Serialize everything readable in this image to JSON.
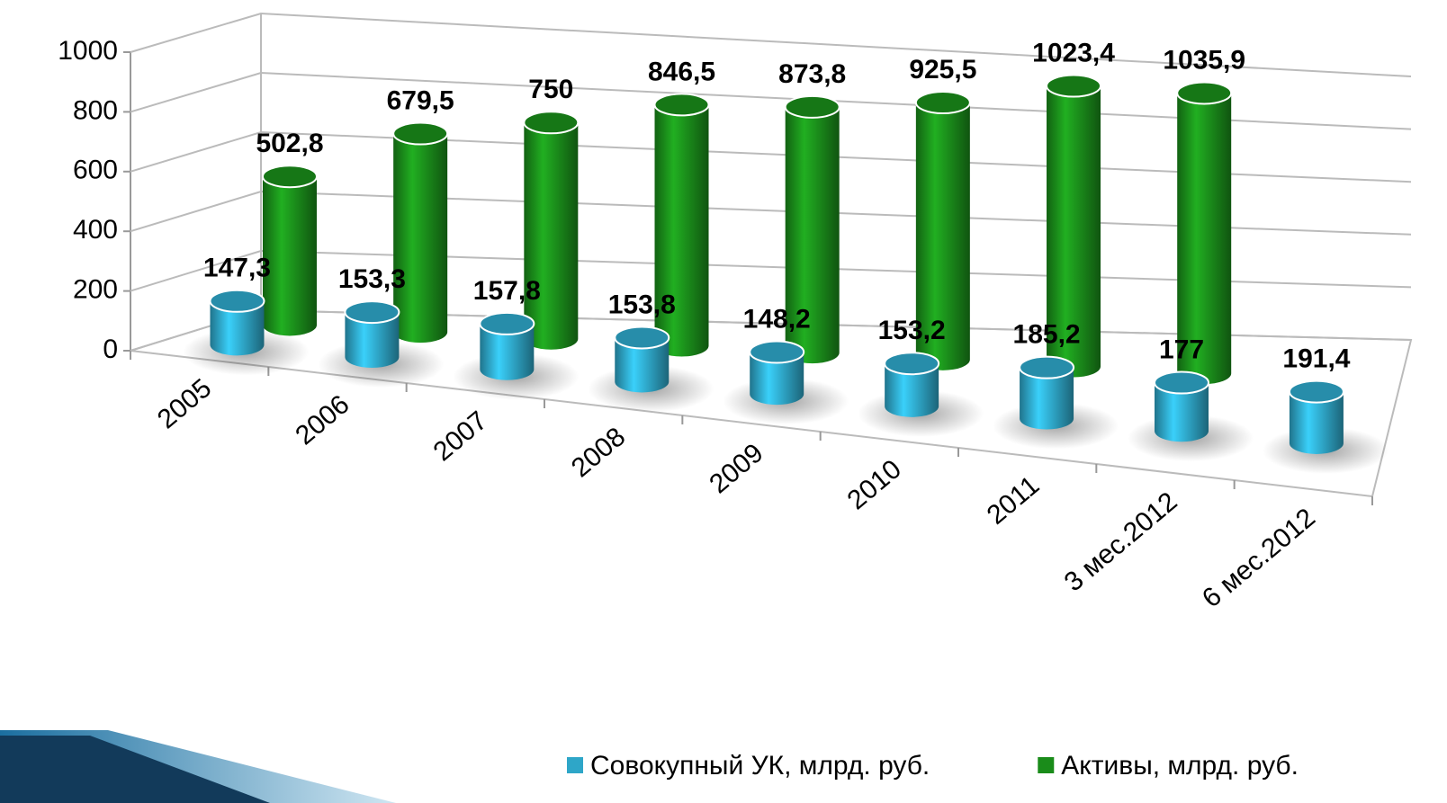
{
  "chart_data": {
    "type": "bar3d-cylinder",
    "categories": [
      "2005",
      "2006",
      "2007",
      "2008",
      "2009",
      "2010",
      "2011",
      "3 мес.2012",
      "6 мес.2012"
    ],
    "series": [
      {
        "name": "Совокупный УК, млрд. руб.",
        "color": "#2ea6c8",
        "values": [
          147.3,
          153.3,
          157.8,
          153.8,
          148.2,
          153.2,
          185.2,
          177,
          191.4
        ],
        "value_labels": [
          "147,3",
          "153,3",
          "157,8",
          "153,8",
          "148,2",
          "153,2",
          "185,2",
          "177",
          "191,4"
        ]
      },
      {
        "name": "Активы, млрд. руб.",
        "color": "#1a8c1a",
        "values": [
          502.8,
          679.5,
          750,
          846.5,
          873.8,
          925.5,
          1023.4,
          1035.9,
          null
        ],
        "value_labels": [
          "502,8",
          "679,5",
          "750",
          "846,5",
          "873,8",
          "925,5",
          "1023,4",
          "1035,9",
          null
        ]
      }
    ],
    "ylim": [
      0,
      1000
    ],
    "yticks": [
      0,
      200,
      400,
      600,
      800,
      1000
    ],
    "grid": true,
    "legend": "bottom"
  }
}
